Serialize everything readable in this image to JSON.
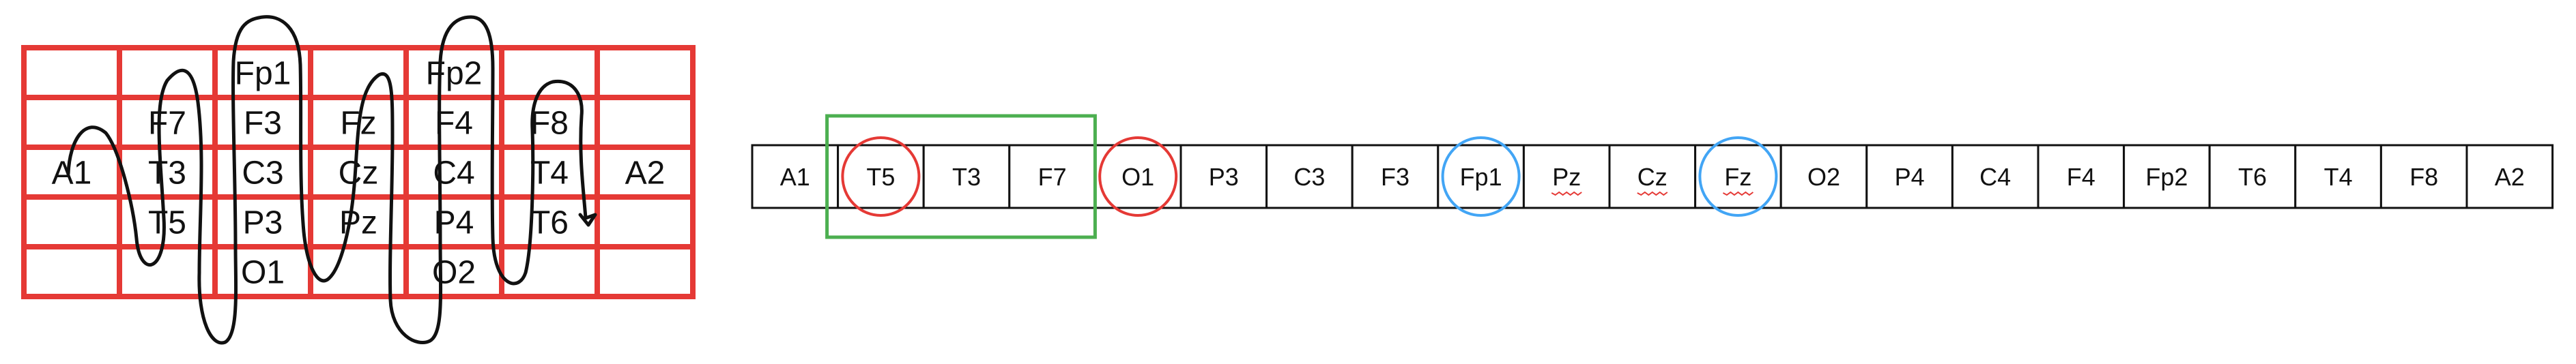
{
  "grid": {
    "rows": [
      [
        "",
        "",
        "Fp1",
        "",
        "Fp2",
        "",
        ""
      ],
      [
        "",
        "F7",
        "F3",
        "Fz",
        "F4",
        "F8",
        ""
      ],
      [
        "A1",
        "T3",
        "C3",
        "Cz",
        "C4",
        "T4",
        "A2"
      ],
      [
        "",
        "T5",
        "P3",
        "Pz",
        "P4",
        "T6",
        ""
      ],
      [
        "",
        "",
        "O1",
        "",
        "O2",
        "",
        ""
      ]
    ],
    "line_color": "#e53935"
  },
  "sequence": {
    "labels": [
      "A1",
      "T5",
      "T3",
      "F7",
      "O1",
      "P3",
      "C3",
      "F3",
      "Fp1",
      "Pz",
      "Cz",
      "Fz",
      "O2",
      "P4",
      "C4",
      "F4",
      "Fp2",
      "T6",
      "T4",
      "F8",
      "A2"
    ],
    "circles": [
      {
        "index": 1,
        "color": "#e53935"
      },
      {
        "index": 4,
        "color": "#e53935"
      },
      {
        "index": 8,
        "color": "#42a5f5"
      },
      {
        "index": 11,
        "color": "#42a5f5"
      }
    ],
    "highlight": {
      "start": 1,
      "end": 3,
      "color": "#4caf50"
    },
    "underlined": [
      9,
      10,
      11
    ]
  }
}
